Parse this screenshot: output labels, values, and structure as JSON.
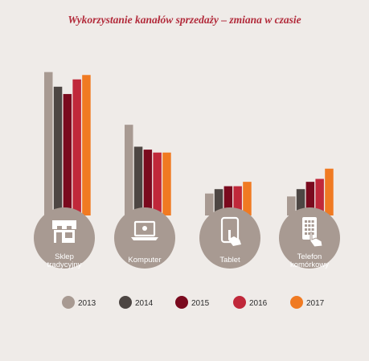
{
  "chart_data": {
    "type": "bar",
    "title": "Wykorzystanie kanałów sprzedaży – zmiana w czasie",
    "categories": [
      {
        "label_lines": [
          "Sklep",
          "tradycyjny"
        ],
        "icon": "store-icon"
      },
      {
        "label_lines": [
          "Komputer"
        ],
        "icon": "laptop-icon"
      },
      {
        "label_lines": [
          "Tablet"
        ],
        "icon": "tablet-icon"
      },
      {
        "label_lines": [
          "Telefon",
          "komórkowy"
        ],
        "icon": "phone-icon"
      }
    ],
    "series": [
      {
        "name": "2013",
        "color": "#a89a92",
        "values": [
          98,
          62,
          15,
          13
        ]
      },
      {
        "name": "2014",
        "color": "#4d4643",
        "values": [
          88,
          47,
          18,
          18
        ]
      },
      {
        "name": "2015",
        "color": "#7a0a1e",
        "values": [
          83,
          45,
          20,
          23
        ]
      },
      {
        "name": "2016",
        "color": "#c0283a",
        "values": [
          93,
          43,
          20,
          25
        ]
      },
      {
        "name": "2017",
        "color": "#f07a22",
        "values": [
          96,
          43,
          23,
          32
        ]
      }
    ],
    "ylim": [
      0,
      100
    ],
    "axes_visible": false,
    "grid": false,
    "legend_position": "bottom",
    "circle_color": "#a89a92"
  }
}
